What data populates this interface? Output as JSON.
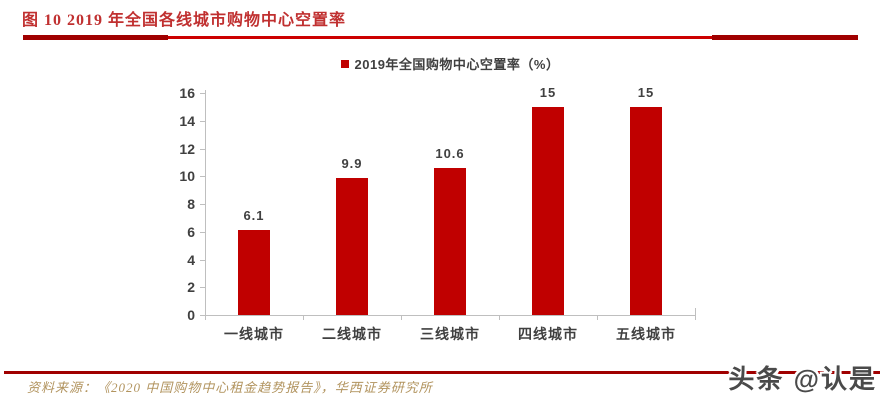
{
  "figure": {
    "title": "图 10   2019 年全国各线城市购物中心空置率",
    "source": "资料来源：《2020 中国购物中心租金趋势报告》，华西证券研究所",
    "watermark": "头条 @认是"
  },
  "chart_data": {
    "type": "bar",
    "title": "2019年全国购物中心空置率（%）",
    "legend": [
      "2019年全国购物中心空置率（%）"
    ],
    "legend_position": "top",
    "categories": [
      "一线城市",
      "二线城市",
      "三线城市",
      "四线城市",
      "五线城市"
    ],
    "values": [
      6.1,
      9.9,
      10.6,
      15,
      15
    ],
    "value_labels": [
      "6.1",
      "9.9",
      "10.6",
      "15",
      "15"
    ],
    "ylim": [
      0,
      16
    ],
    "yticks": [
      0,
      2,
      4,
      6,
      8,
      10,
      12,
      14,
      16
    ],
    "grid": false,
    "xlabel": "",
    "ylabel": ""
  },
  "colors": {
    "bar": "#C00000",
    "rule_thick": "#A00000",
    "rule_thin": "#CC0000",
    "title_red": "#C03030",
    "source_tan": "#B2945F",
    "text_dark": "#404040",
    "axis_gray": "#BFBFBF",
    "watermark_gray": "#4A4A4A"
  }
}
